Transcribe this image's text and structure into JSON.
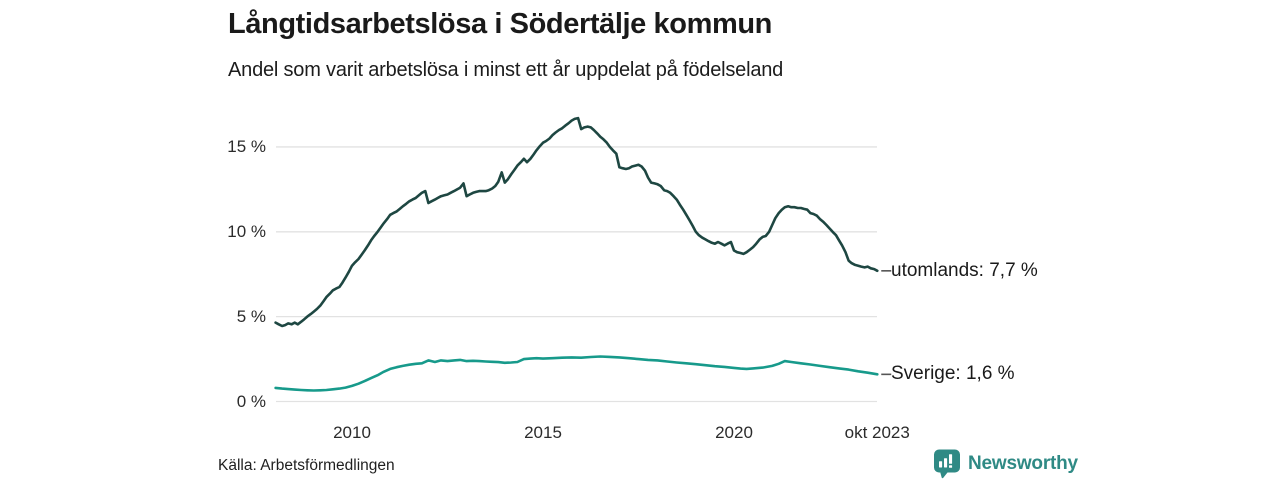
{
  "title": "Långtidsarbetslösa i Södertälje kommun",
  "subtitle": "Andel som varit arbetslösa i minst ett år uppdelat på födelseland",
  "source": "Källa: Arbetsförmedlingen",
  "branding": {
    "name": "Newsworthy",
    "color": "#2f8a85",
    "icon": "newsworthy-pin-bar-chart-icon"
  },
  "chart_data": {
    "type": "line",
    "title": "Långtidsarbetslösa i Södertälje kommun",
    "subtitle": "Andel som varit arbetslösa i minst ett år uppdelat på födelseland",
    "x_axis": {
      "unit": "year",
      "range": [
        2008.0,
        2023.75
      ],
      "ticks": [
        {
          "label": "2010",
          "year": 2010
        },
        {
          "label": "2015",
          "year": 2015
        },
        {
          "label": "2020",
          "year": 2020
        },
        {
          "label": "okt 2023",
          "year": 2023.75
        }
      ]
    },
    "y_axis": {
      "unit": "%",
      "range": [
        0,
        17.5
      ],
      "grid": true,
      "grid_color": "#e2e2e2",
      "ticks": [
        {
          "label": "0 %",
          "value": 0
        },
        {
          "label": "5 %",
          "value": 5
        },
        {
          "label": "10 %",
          "value": 10
        },
        {
          "label": "15 %",
          "value": 15
        }
      ]
    },
    "legend_position": "end-of-line-labels",
    "series": [
      {
        "name": "utomlands",
        "end_label": "utomlands: 7,7 %",
        "last_value_text": "7,7 %",
        "color": "#1e4742",
        "points": [
          [
            2008.0,
            4.65
          ],
          [
            2008.08,
            4.55
          ],
          [
            2008.17,
            4.45
          ],
          [
            2008.25,
            4.5
          ],
          [
            2008.33,
            4.6
          ],
          [
            2008.42,
            4.55
          ],
          [
            2008.5,
            4.65
          ],
          [
            2008.58,
            4.55
          ],
          [
            2008.67,
            4.7
          ],
          [
            2008.75,
            4.85
          ],
          [
            2008.83,
            5.0
          ],
          [
            2008.92,
            5.15
          ],
          [
            2009.0,
            5.3
          ],
          [
            2009.08,
            5.45
          ],
          [
            2009.17,
            5.65
          ],
          [
            2009.25,
            5.9
          ],
          [
            2009.33,
            6.15
          ],
          [
            2009.42,
            6.35
          ],
          [
            2009.5,
            6.55
          ],
          [
            2009.58,
            6.65
          ],
          [
            2009.67,
            6.75
          ],
          [
            2009.75,
            7.0
          ],
          [
            2009.83,
            7.3
          ],
          [
            2009.92,
            7.65
          ],
          [
            2010.0,
            8.0
          ],
          [
            2010.08,
            8.2
          ],
          [
            2010.17,
            8.4
          ],
          [
            2010.25,
            8.65
          ],
          [
            2010.33,
            8.9
          ],
          [
            2010.42,
            9.2
          ],
          [
            2010.5,
            9.5
          ],
          [
            2010.58,
            9.75
          ],
          [
            2010.67,
            10.0
          ],
          [
            2010.75,
            10.25
          ],
          [
            2010.83,
            10.5
          ],
          [
            2010.92,
            10.75
          ],
          [
            2011.0,
            11.0
          ],
          [
            2011.08,
            11.1
          ],
          [
            2011.17,
            11.2
          ],
          [
            2011.25,
            11.35
          ],
          [
            2011.33,
            11.5
          ],
          [
            2011.42,
            11.65
          ],
          [
            2011.5,
            11.8
          ],
          [
            2011.58,
            11.9
          ],
          [
            2011.67,
            12.0
          ],
          [
            2011.75,
            12.15
          ],
          [
            2011.83,
            12.3
          ],
          [
            2011.92,
            12.4
          ],
          [
            2012.0,
            11.7
          ],
          [
            2012.08,
            11.8
          ],
          [
            2012.17,
            11.9
          ],
          [
            2012.25,
            12.0
          ],
          [
            2012.33,
            12.1
          ],
          [
            2012.42,
            12.15
          ],
          [
            2012.5,
            12.2
          ],
          [
            2012.58,
            12.3
          ],
          [
            2012.67,
            12.4
          ],
          [
            2012.75,
            12.5
          ],
          [
            2012.83,
            12.6
          ],
          [
            2012.92,
            12.85
          ],
          [
            2013.0,
            12.1
          ],
          [
            2013.08,
            12.2
          ],
          [
            2013.17,
            12.3
          ],
          [
            2013.25,
            12.35
          ],
          [
            2013.33,
            12.4
          ],
          [
            2013.42,
            12.4
          ],
          [
            2013.5,
            12.4
          ],
          [
            2013.58,
            12.45
          ],
          [
            2013.67,
            12.55
          ],
          [
            2013.75,
            12.7
          ],
          [
            2013.83,
            12.95
          ],
          [
            2013.92,
            13.5
          ],
          [
            2014.0,
            12.9
          ],
          [
            2014.08,
            13.1
          ],
          [
            2014.17,
            13.4
          ],
          [
            2014.25,
            13.65
          ],
          [
            2014.33,
            13.9
          ],
          [
            2014.42,
            14.1
          ],
          [
            2014.5,
            14.3
          ],
          [
            2014.58,
            14.1
          ],
          [
            2014.67,
            14.3
          ],
          [
            2014.75,
            14.55
          ],
          [
            2014.83,
            14.8
          ],
          [
            2014.92,
            15.05
          ],
          [
            2015.0,
            15.25
          ],
          [
            2015.08,
            15.35
          ],
          [
            2015.17,
            15.5
          ],
          [
            2015.25,
            15.7
          ],
          [
            2015.33,
            15.85
          ],
          [
            2015.42,
            16.0
          ],
          [
            2015.5,
            16.1
          ],
          [
            2015.58,
            16.25
          ],
          [
            2015.67,
            16.4
          ],
          [
            2015.75,
            16.55
          ],
          [
            2015.83,
            16.65
          ],
          [
            2015.92,
            16.7
          ],
          [
            2016.0,
            16.05
          ],
          [
            2016.08,
            16.15
          ],
          [
            2016.17,
            16.2
          ],
          [
            2016.25,
            16.15
          ],
          [
            2016.33,
            16.0
          ],
          [
            2016.42,
            15.8
          ],
          [
            2016.5,
            15.6
          ],
          [
            2016.58,
            15.45
          ],
          [
            2016.67,
            15.25
          ],
          [
            2016.75,
            15.0
          ],
          [
            2016.83,
            14.8
          ],
          [
            2016.92,
            14.6
          ],
          [
            2017.0,
            13.8
          ],
          [
            2017.08,
            13.75
          ],
          [
            2017.17,
            13.7
          ],
          [
            2017.25,
            13.75
          ],
          [
            2017.33,
            13.85
          ],
          [
            2017.42,
            13.9
          ],
          [
            2017.5,
            13.95
          ],
          [
            2017.58,
            13.85
          ],
          [
            2017.67,
            13.6
          ],
          [
            2017.75,
            13.2
          ],
          [
            2017.83,
            12.9
          ],
          [
            2017.92,
            12.85
          ],
          [
            2018.0,
            12.8
          ],
          [
            2018.08,
            12.7
          ],
          [
            2018.17,
            12.45
          ],
          [
            2018.25,
            12.4
          ],
          [
            2018.33,
            12.3
          ],
          [
            2018.42,
            12.1
          ],
          [
            2018.5,
            11.9
          ],
          [
            2018.58,
            11.6
          ],
          [
            2018.67,
            11.3
          ],
          [
            2018.75,
            11.0
          ],
          [
            2018.83,
            10.7
          ],
          [
            2018.92,
            10.35
          ],
          [
            2019.0,
            10.0
          ],
          [
            2019.08,
            9.8
          ],
          [
            2019.17,
            9.65
          ],
          [
            2019.25,
            9.55
          ],
          [
            2019.33,
            9.45
          ],
          [
            2019.42,
            9.35
          ],
          [
            2019.5,
            9.3
          ],
          [
            2019.58,
            9.4
          ],
          [
            2019.67,
            9.3
          ],
          [
            2019.75,
            9.2
          ],
          [
            2019.83,
            9.3
          ],
          [
            2019.92,
            9.4
          ],
          [
            2020.0,
            8.9
          ],
          [
            2020.08,
            8.8
          ],
          [
            2020.17,
            8.75
          ],
          [
            2020.25,
            8.7
          ],
          [
            2020.33,
            8.8
          ],
          [
            2020.42,
            8.95
          ],
          [
            2020.5,
            9.1
          ],
          [
            2020.58,
            9.3
          ],
          [
            2020.67,
            9.55
          ],
          [
            2020.75,
            9.7
          ],
          [
            2020.83,
            9.75
          ],
          [
            2020.92,
            10.0
          ],
          [
            2021.0,
            10.4
          ],
          [
            2021.08,
            10.8
          ],
          [
            2021.17,
            11.1
          ],
          [
            2021.25,
            11.3
          ],
          [
            2021.33,
            11.45
          ],
          [
            2021.42,
            11.5
          ],
          [
            2021.5,
            11.45
          ],
          [
            2021.58,
            11.45
          ],
          [
            2021.67,
            11.4
          ],
          [
            2021.75,
            11.4
          ],
          [
            2021.83,
            11.35
          ],
          [
            2021.92,
            11.3
          ],
          [
            2022.0,
            11.1
          ],
          [
            2022.08,
            11.05
          ],
          [
            2022.17,
            10.95
          ],
          [
            2022.25,
            10.75
          ],
          [
            2022.33,
            10.6
          ],
          [
            2022.42,
            10.4
          ],
          [
            2022.5,
            10.2
          ],
          [
            2022.58,
            10.0
          ],
          [
            2022.67,
            9.8
          ],
          [
            2022.75,
            9.5
          ],
          [
            2022.83,
            9.2
          ],
          [
            2022.92,
            8.8
          ],
          [
            2023.0,
            8.3
          ],
          [
            2023.08,
            8.15
          ],
          [
            2023.17,
            8.05
          ],
          [
            2023.25,
            8.0
          ],
          [
            2023.33,
            7.95
          ],
          [
            2023.42,
            7.9
          ],
          [
            2023.5,
            7.95
          ],
          [
            2023.58,
            7.85
          ],
          [
            2023.67,
            7.8
          ],
          [
            2023.75,
            7.7
          ]
        ]
      },
      {
        "name": "Sverige",
        "end_label": "Sverige: 1,6 %",
        "last_value_text": "1,6 %",
        "color": "#179a8b",
        "points": [
          [
            2008.0,
            0.8
          ],
          [
            2008.17,
            0.76
          ],
          [
            2008.33,
            0.73
          ],
          [
            2008.5,
            0.7
          ],
          [
            2008.67,
            0.68
          ],
          [
            2008.83,
            0.66
          ],
          [
            2009.0,
            0.65
          ],
          [
            2009.17,
            0.66
          ],
          [
            2009.33,
            0.68
          ],
          [
            2009.5,
            0.72
          ],
          [
            2009.67,
            0.76
          ],
          [
            2009.83,
            0.82
          ],
          [
            2010.0,
            0.92
          ],
          [
            2010.17,
            1.05
          ],
          [
            2010.33,
            1.2
          ],
          [
            2010.5,
            1.38
          ],
          [
            2010.67,
            1.55
          ],
          [
            2010.83,
            1.75
          ],
          [
            2011.0,
            1.92
          ],
          [
            2011.17,
            2.02
          ],
          [
            2011.33,
            2.1
          ],
          [
            2011.5,
            2.17
          ],
          [
            2011.67,
            2.22
          ],
          [
            2011.83,
            2.25
          ],
          [
            2012.0,
            2.42
          ],
          [
            2012.17,
            2.33
          ],
          [
            2012.33,
            2.42
          ],
          [
            2012.5,
            2.38
          ],
          [
            2012.67,
            2.42
          ],
          [
            2012.83,
            2.45
          ],
          [
            2013.0,
            2.38
          ],
          [
            2013.17,
            2.4
          ],
          [
            2013.33,
            2.38
          ],
          [
            2013.5,
            2.36
          ],
          [
            2013.67,
            2.34
          ],
          [
            2013.83,
            2.32
          ],
          [
            2014.0,
            2.28
          ],
          [
            2014.17,
            2.3
          ],
          [
            2014.33,
            2.33
          ],
          [
            2014.5,
            2.5
          ],
          [
            2014.67,
            2.53
          ],
          [
            2014.83,
            2.55
          ],
          [
            2015.0,
            2.53
          ],
          [
            2015.25,
            2.55
          ],
          [
            2015.5,
            2.58
          ],
          [
            2015.75,
            2.6
          ],
          [
            2016.0,
            2.58
          ],
          [
            2016.25,
            2.62
          ],
          [
            2016.5,
            2.65
          ],
          [
            2016.75,
            2.63
          ],
          [
            2017.0,
            2.6
          ],
          [
            2017.25,
            2.55
          ],
          [
            2017.5,
            2.5
          ],
          [
            2017.75,
            2.45
          ],
          [
            2018.0,
            2.42
          ],
          [
            2018.25,
            2.36
          ],
          [
            2018.5,
            2.3
          ],
          [
            2018.75,
            2.25
          ],
          [
            2019.0,
            2.2
          ],
          [
            2019.25,
            2.14
          ],
          [
            2019.5,
            2.08
          ],
          [
            2019.75,
            2.04
          ],
          [
            2020.0,
            1.98
          ],
          [
            2020.17,
            1.94
          ],
          [
            2020.33,
            1.92
          ],
          [
            2020.5,
            1.95
          ],
          [
            2020.75,
            2.0
          ],
          [
            2021.0,
            2.1
          ],
          [
            2021.17,
            2.22
          ],
          [
            2021.33,
            2.38
          ],
          [
            2021.5,
            2.33
          ],
          [
            2021.75,
            2.25
          ],
          [
            2022.0,
            2.18
          ],
          [
            2022.25,
            2.1
          ],
          [
            2022.5,
            2.02
          ],
          [
            2022.75,
            1.95
          ],
          [
            2023.0,
            1.88
          ],
          [
            2023.25,
            1.78
          ],
          [
            2023.5,
            1.7
          ],
          [
            2023.75,
            1.6
          ]
        ]
      }
    ]
  }
}
